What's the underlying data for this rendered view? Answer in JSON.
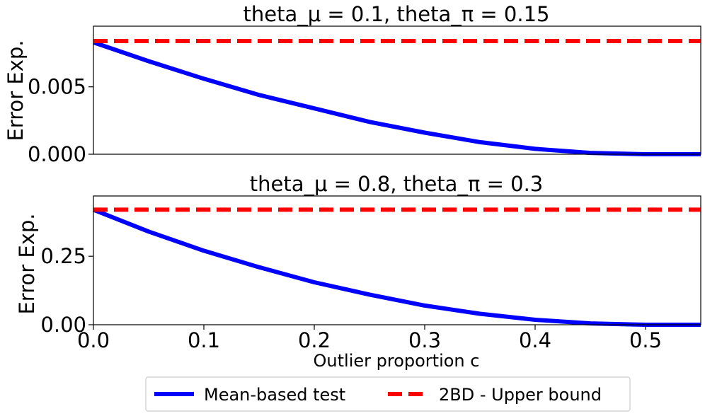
{
  "chart_data": [
    {
      "type": "line",
      "title": "theta_μ = 0.1, theta_π = 0.15",
      "xlabel": "",
      "ylabel": "Error Exp.",
      "xlim": [
        0.0,
        0.55
      ],
      "ylim": [
        0.0,
        0.0095
      ],
      "yticks": [
        0.0,
        0.005
      ],
      "ytick_labels": [
        "0.000",
        "0.005"
      ],
      "series": [
        {
          "name": "Mean-based test",
          "color": "#0000ff",
          "style": "solid",
          "x": [
            0.0,
            0.05,
            0.1,
            0.15,
            0.2,
            0.25,
            0.3,
            0.35,
            0.4,
            0.45,
            0.5,
            0.55
          ],
          "y": [
            0.0083,
            0.0069,
            0.0056,
            0.0044,
            0.0034,
            0.0024,
            0.0016,
            0.0009,
            0.0004,
            0.0001,
            0.0,
            0.0
          ]
        },
        {
          "name": "2BD - Upper bound",
          "color": "#ff0000",
          "style": "dashed",
          "x": [
            0.0,
            0.55
          ],
          "y": [
            0.0084,
            0.0084
          ]
        }
      ]
    },
    {
      "type": "line",
      "title": "theta_μ = 0.8, theta_π = 0.3",
      "xlabel": "Outlier proportion c",
      "ylabel": "Error Exp.",
      "xlim": [
        0.0,
        0.55
      ],
      "ylim": [
        0.0,
        0.47
      ],
      "yticks": [
        0.0,
        0.25
      ],
      "ytick_labels": [
        "0.00",
        "0.25"
      ],
      "xticks": [
        0.0,
        0.1,
        0.2,
        0.3,
        0.4,
        0.5
      ],
      "xtick_labels": [
        "0.0",
        "0.1",
        "0.2",
        "0.3",
        "0.4",
        "0.5"
      ],
      "series": [
        {
          "name": "Mean-based test",
          "color": "#0000ff",
          "style": "solid",
          "x": [
            0.0,
            0.05,
            0.1,
            0.15,
            0.2,
            0.25,
            0.3,
            0.35,
            0.4,
            0.45,
            0.5,
            0.55
          ],
          "y": [
            0.42,
            0.34,
            0.27,
            0.21,
            0.155,
            0.11,
            0.07,
            0.04,
            0.018,
            0.005,
            0.0,
            0.0
          ]
        },
        {
          "name": "2BD - Upper bound",
          "color": "#ff0000",
          "style": "dashed",
          "x": [
            0.0,
            0.55
          ],
          "y": [
            0.42,
            0.42
          ]
        }
      ]
    }
  ],
  "legend": {
    "entries": [
      {
        "label": "Mean-based test",
        "color": "#0000ff",
        "style": "solid"
      },
      {
        "label": "2BD - Upper bound",
        "color": "#ff0000",
        "style": "dashed"
      }
    ]
  }
}
